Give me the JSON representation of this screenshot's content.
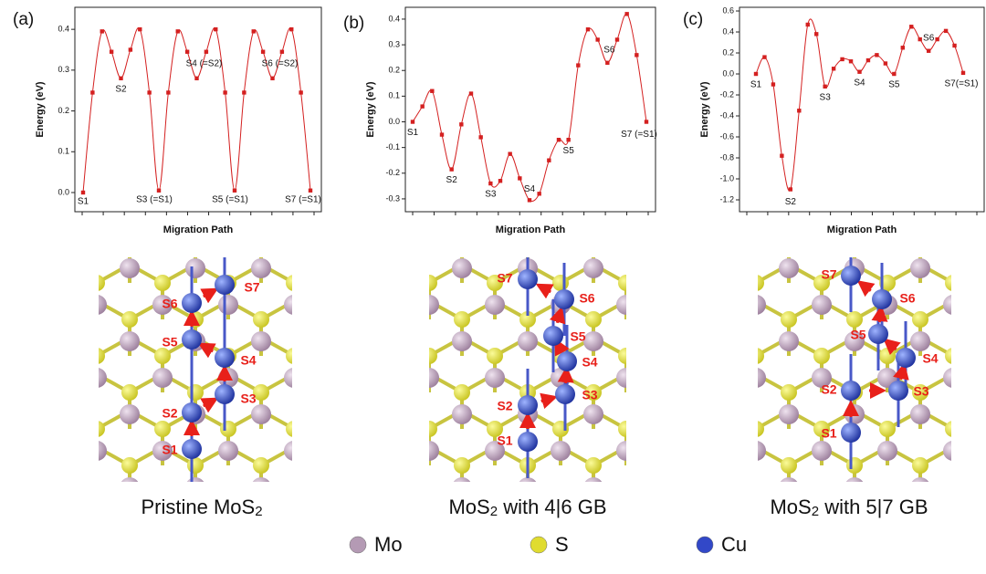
{
  "chart_data": [
    {
      "type": "line",
      "panel": "(a)",
      "y_label": "Energy (eV)",
      "x_label": "Migration Path",
      "color": "#d42020",
      "values": [
        0.0,
        0.245,
        0.395,
        0.345,
        0.28,
        0.35,
        0.4,
        0.245,
        0.005,
        0.245,
        0.395,
        0.345,
        0.28,
        0.345,
        0.4,
        0.245,
        0.005,
        0.245,
        0.395,
        0.345,
        0.28,
        0.345,
        0.4,
        0.245,
        0.005
      ],
      "ylim": [
        -0.047,
        0.454
      ],
      "yticks": [
        {
          "value": 0,
          "label": "0.0"
        },
        0.1,
        0.2,
        0.3,
        0.4
      ],
      "annotations": [
        "S1",
        "S2",
        "S3 (=S1)",
        "S4 (=S2)",
        "S5 (=S1)",
        "S6 (=S2)",
        "S7 (=S1)"
      ]
    },
    {
      "type": "line",
      "panel": "(b)",
      "y_label": "Energy (eV)",
      "x_label": "Migration Path",
      "color": "#d42020",
      "values": [
        0.0,
        0.06,
        0.12,
        -0.05,
        -0.185,
        -0.01,
        0.11,
        -0.06,
        -0.24,
        -0.23,
        -0.125,
        -0.22,
        -0.305,
        -0.28,
        -0.15,
        -0.07,
        -0.07,
        0.22,
        0.36,
        0.32,
        0.23,
        0.32,
        0.42,
        0.26,
        0.0
      ],
      "ylim": [
        -0.35,
        0.446
      ],
      "yticks": [
        -0.3,
        -0.2,
        -0.1,
        {
          "value": 0,
          "label": "0.0"
        },
        0.1,
        0.2,
        0.3,
        0.4
      ],
      "annotations": [
        "S1",
        "S2",
        "S3",
        "S4",
        "S5",
        "S6",
        "S7 (=S1)"
      ]
    },
    {
      "type": "line",
      "panel": "(c)",
      "y_label": "Energy (eV)",
      "x_label": "Migration Path",
      "color": "#d42020",
      "values": [
        0.0,
        0.16,
        -0.1,
        -0.78,
        -1.1,
        -0.35,
        0.47,
        0.38,
        -0.12,
        0.05,
        0.14,
        0.12,
        0.02,
        0.13,
        0.18,
        0.1,
        0.0,
        0.25,
        0.45,
        0.33,
        0.22,
        0.33,
        0.41,
        0.27,
        0.01
      ],
      "ylim": [
        -1.313,
        0.635
      ],
      "yticks": [
        -1.2,
        {
          "value": -1,
          "label": "-1.0"
        },
        -0.8,
        -0.6,
        -0.4,
        -0.2,
        {
          "value": 0,
          "label": "0.0"
        },
        0.2,
        0.4,
        0.6
      ],
      "annotations": [
        "S1",
        "S2",
        "S3",
        "S4",
        "S5",
        "S6",
        "S7(=S1)"
      ]
    }
  ],
  "structures": [
    {
      "caption": [
        "Pristine MoS",
        "2"
      ],
      "labels": [
        "S1",
        "S2",
        "S3",
        "S4",
        "S5",
        "S6",
        "S7"
      ]
    },
    {
      "caption": [
        "MoS",
        "2",
        " with 4|6 GB"
      ],
      "labels": [
        "S1",
        "S2",
        "S3",
        "S4",
        "S5",
        "S6",
        "S7"
      ]
    },
    {
      "caption": [
        "MoS",
        "2",
        " with 5|7 GB"
      ],
      "labels": [
        "S1",
        "S2",
        "S3",
        "S4",
        "S5",
        "S6",
        "S7"
      ]
    }
  ],
  "legend": [
    {
      "label": "Mo",
      "color": "#b49ab4"
    },
    {
      "label": "S",
      "color": "#e0dc30"
    },
    {
      "label": "Cu",
      "color": "#3248c8"
    }
  ]
}
